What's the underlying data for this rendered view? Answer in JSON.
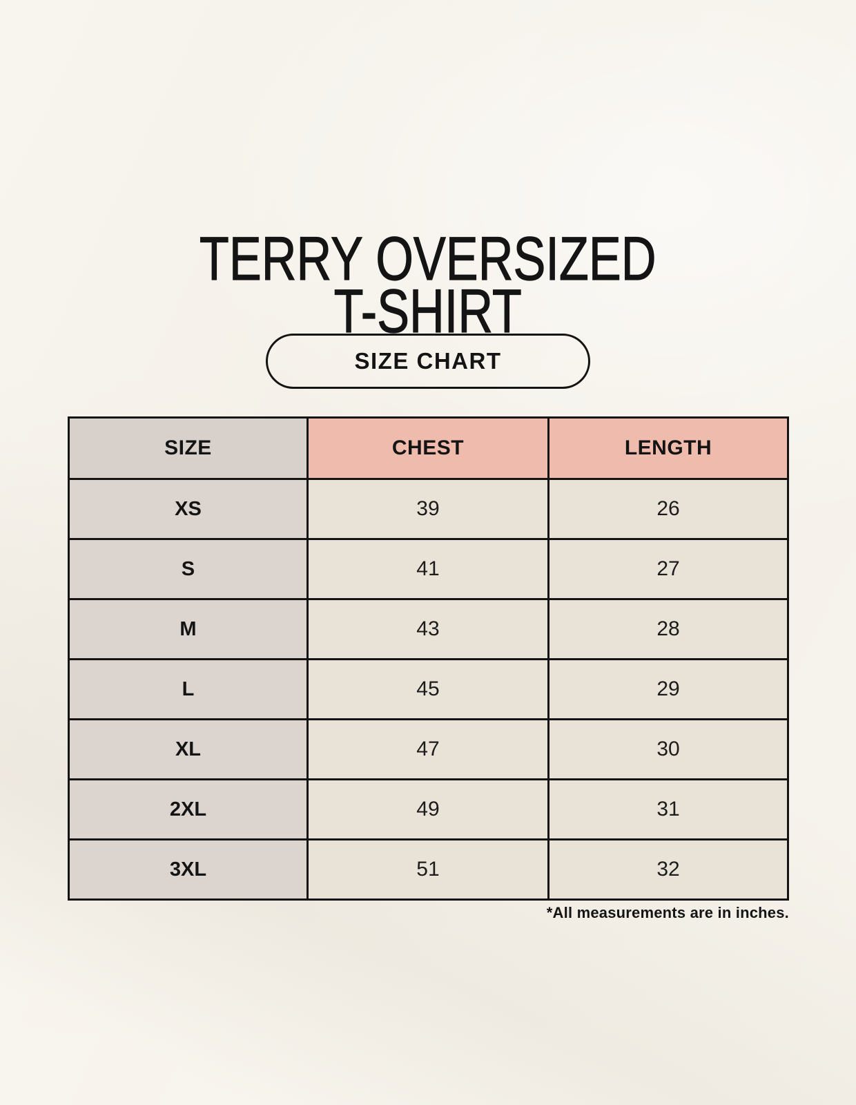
{
  "header": {
    "title_line1": "TERRY OVERSIZED",
    "title_line2": "T-SHIRT",
    "button_label": "SIZE CHART"
  },
  "footer": {
    "note": "*All measurements are in inches."
  },
  "colors": {
    "page_background": "#f6f2eb",
    "text": "#141414",
    "table_border": "#141414",
    "header_size_bg": "#d7d0cb",
    "header_accent_bg": "#efbbac",
    "size_column_bg": "#dbd4cf",
    "value_cell_bg": "#e9e2d7"
  },
  "chart_data": {
    "type": "table",
    "title": "TERRY OVERSIZED T-SHIRT",
    "columns": [
      "SIZE",
      "CHEST",
      "LENGTH"
    ],
    "rows": [
      [
        "XS",
        39,
        26
      ],
      [
        "S",
        41,
        27
      ],
      [
        "M",
        43,
        28
      ],
      [
        "L",
        45,
        29
      ],
      [
        "XL",
        47,
        30
      ],
      [
        "2XL",
        49,
        31
      ],
      [
        "3XL",
        51,
        32
      ]
    ],
    "units": "inches",
    "footnote": "*All measurements are in inches."
  }
}
